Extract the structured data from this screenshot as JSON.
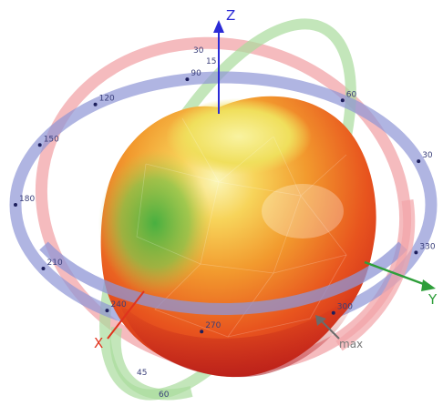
{
  "axes": {
    "z_label": "Z",
    "x_label": "X",
    "y_label": "Y"
  },
  "max_label": "max",
  "ring_labels": {
    "azimuth": [
      "90",
      "120",
      "150",
      "180",
      "210",
      "240",
      "270",
      "300",
      "330",
      "30",
      "60"
    ],
    "elevation": [
      "15",
      "30",
      "45",
      "60"
    ]
  },
  "colors": {
    "azimuth_ring": "#8f96d6",
    "elevation_ring_red": "#f2a4a8",
    "elevation_ring_green": "#a9dc9c",
    "pattern_hot": "#d8281e",
    "pattern_mid": "#ee7a22",
    "pattern_warm": "#f5c233",
    "pattern_cool": "#46b84a",
    "z_axis": "#2b2bd6",
    "x_axis": "#e0331d",
    "y_axis": "#2e9e3a"
  }
}
